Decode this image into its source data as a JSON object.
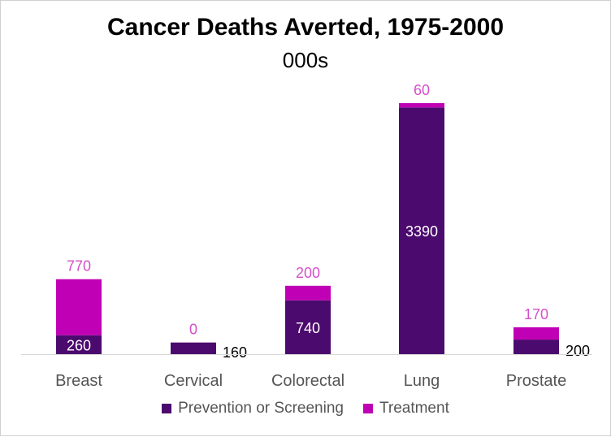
{
  "chart_data": {
    "type": "bar",
    "stacked": true,
    "title": "Cancer Deaths Averted, 1975-2000",
    "subtitle": "000s",
    "categories": [
      "Breast",
      "Cervical",
      "Colorectal",
      "Lung",
      "Prostate"
    ],
    "series": [
      {
        "name": "Prevention or Screening",
        "color": "#4B0A6E",
        "values": [
          260,
          160,
          740,
          3390,
          200
        ]
      },
      {
        "name": "Treatment",
        "color": "#C000B4",
        "values": [
          770,
          0,
          200,
          60,
          170
        ]
      }
    ],
    "ylim": [
      0,
      3450
    ],
    "grid": false,
    "legend_position": "bottom",
    "data_label_colors": {
      "inside": "#FFFFFF",
      "outside_dark": "#000000",
      "treatment": "#D64FC8"
    }
  }
}
